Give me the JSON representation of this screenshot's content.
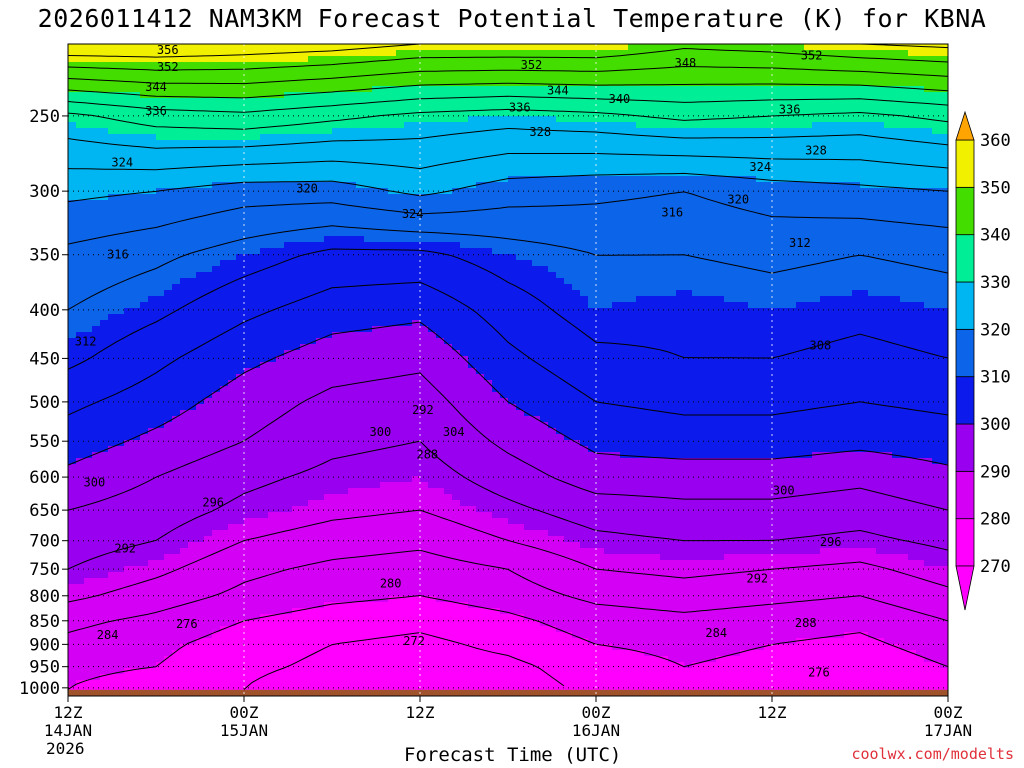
{
  "title": "2026011412 NAM3KM Forecast Potential Temperature (K) for KBNA",
  "credit": "coolwx.com/modelts",
  "chart_data": {
    "type": "heatmap",
    "title": "2026011412 NAM3KM Forecast Potential Temperature (K) for KBNA",
    "xlabel": "Forecast Time (UTC)",
    "ylabel": "",
    "x_ticks": [
      {
        "hours": 0,
        "line1": "12Z",
        "line2": "14JAN"
      },
      {
        "hours": 12,
        "line1": "00Z",
        "line2": "15JAN"
      },
      {
        "hours": 24,
        "line1": "12Z",
        "line2": ""
      },
      {
        "hours": 36,
        "line1": "00Z",
        "line2": "16JAN"
      },
      {
        "hours": 48,
        "line1": "12Z",
        "line2": ""
      },
      {
        "hours": 60,
        "line1": "00Z",
        "line2": "17JAN"
      }
    ],
    "year_label": "2026",
    "xlim": [
      0,
      60
    ],
    "y_ticks": [
      250,
      300,
      350,
      400,
      450,
      500,
      550,
      600,
      650,
      700,
      750,
      800,
      850,
      900,
      950,
      1000
    ],
    "ylim": [
      1020,
      210
    ],
    "y_scale": "log-pressure",
    "colorbar": {
      "levels": [
        270,
        280,
        290,
        300,
        310,
        320,
        330,
        340,
        350,
        360
      ],
      "colors": [
        "#ff00ff",
        "#d400f5",
        "#9a00f0",
        "#0c1aec",
        "#0c64e8",
        "#00b6f2",
        "#00ee96",
        "#44dd00",
        "#f0f000",
        "#ffa400"
      ],
      "extend": "both"
    },
    "time_hours": [
      0,
      6,
      12,
      18,
      24,
      30,
      36,
      42,
      48,
      54,
      60
    ],
    "theta_levels_hpa": [
      1000,
      950,
      900,
      850,
      800,
      750,
      700,
      650,
      600,
      550,
      500,
      450,
      400,
      350,
      300,
      250,
      210
    ],
    "theta_K": [
      [
        280,
        278,
        276,
        273,
        272,
        274,
        277,
        279,
        278,
        276,
        279
      ],
      [
        281,
        280,
        277,
        275,
        274,
        275,
        278,
        280,
        279,
        277,
        280
      ],
      [
        283,
        281,
        278,
        276,
        275,
        277,
        280,
        281,
        280,
        279,
        282
      ],
      [
        285,
        283,
        280,
        278,
        277,
        279,
        282,
        283,
        282,
        281,
        284
      ],
      [
        289,
        286,
        283,
        281,
        280,
        282,
        285,
        286,
        285,
        284,
        287
      ],
      [
        292,
        289,
        285,
        283,
        282,
        284,
        288,
        289,
        288,
        287,
        290
      ],
      [
        294,
        292,
        288,
        286,
        285,
        288,
        291,
        292,
        292,
        291,
        293
      ],
      [
        296,
        294,
        291,
        289,
        288,
        291,
        294,
        295,
        295,
        294,
        296
      ],
      [
        299,
        296,
        293,
        291,
        290,
        294,
        298,
        298,
        298,
        297,
        299
      ],
      [
        302,
        299,
        296,
        293,
        292,
        297,
        301,
        302,
        302,
        301,
        302
      ],
      [
        305,
        302,
        298,
        295,
        294,
        300,
        304,
        305,
        305,
        304,
        305
      ],
      [
        309,
        305,
        301,
        298,
        297,
        303,
        307,
        308,
        308,
        307,
        308
      ],
      [
        312,
        309,
        305,
        302,
        301,
        306,
        310,
        309,
        310,
        309,
        310
      ],
      [
        315,
        313,
        310,
        307,
        307,
        310,
        312,
        312,
        313,
        312,
        313
      ],
      [
        321,
        320,
        318,
        318,
        321,
        318,
        317,
        316,
        318,
        319,
        320
      ],
      [
        331,
        334,
        335,
        333,
        331,
        330,
        331,
        333,
        332,
        331,
        333
      ],
      [
        356,
        356,
        355,
        354,
        352,
        352,
        352,
        349,
        350,
        352,
        353
      ]
    ],
    "contour_labels": [
      {
        "text": "356",
        "t": 6.8,
        "p": 213
      },
      {
        "text": "352",
        "t": 6.8,
        "p": 222
      },
      {
        "text": "344",
        "t": 6.0,
        "p": 233
      },
      {
        "text": "336",
        "t": 6.0,
        "p": 247
      },
      {
        "text": "324",
        "t": 3.7,
        "p": 280
      },
      {
        "text": "320",
        "t": 16.3,
        "p": 298
      },
      {
        "text": "316",
        "t": 3.4,
        "p": 350
      },
      {
        "text": "312",
        "t": 1.2,
        "p": 432
      },
      {
        "text": "300",
        "t": 1.8,
        "p": 608
      },
      {
        "text": "296",
        "t": 9.9,
        "p": 638
      },
      {
        "text": "292",
        "t": 3.9,
        "p": 713
      },
      {
        "text": "284",
        "t": 2.7,
        "p": 880
      },
      {
        "text": "276",
        "t": 8.1,
        "p": 857
      },
      {
        "text": "272",
        "t": 23.6,
        "p": 893
      },
      {
        "text": "288",
        "t": 24.5,
        "p": 568
      },
      {
        "text": "292",
        "t": 24.2,
        "p": 510
      },
      {
        "text": "280",
        "t": 22.0,
        "p": 777
      },
      {
        "text": "300",
        "t": 21.3,
        "p": 538
      },
      {
        "text": "304",
        "t": 26.3,
        "p": 538
      },
      {
        "text": "352",
        "t": 31.6,
        "p": 221
      },
      {
        "text": "344",
        "t": 33.4,
        "p": 235
      },
      {
        "text": "340",
        "t": 37.6,
        "p": 240
      },
      {
        "text": "336",
        "t": 30.8,
        "p": 245
      },
      {
        "text": "328",
        "t": 32.2,
        "p": 260
      },
      {
        "text": "324",
        "t": 23.5,
        "p": 317
      },
      {
        "text": "316",
        "t": 41.2,
        "p": 316
      },
      {
        "text": "320",
        "t": 45.7,
        "p": 306
      },
      {
        "text": "348",
        "t": 42.1,
        "p": 220
      },
      {
        "text": "352",
        "t": 50.7,
        "p": 216
      },
      {
        "text": "336",
        "t": 49.2,
        "p": 246
      },
      {
        "text": "324",
        "t": 47.2,
        "p": 283
      },
      {
        "text": "328",
        "t": 51.0,
        "p": 272
      },
      {
        "text": "312",
        "t": 49.9,
        "p": 340
      },
      {
        "text": "308",
        "t": 51.3,
        "p": 436
      },
      {
        "text": "300",
        "t": 48.8,
        "p": 620
      },
      {
        "text": "296",
        "t": 52.0,
        "p": 702
      },
      {
        "text": "292",
        "t": 47.0,
        "p": 767
      },
      {
        "text": "288",
        "t": 50.3,
        "p": 855
      },
      {
        "text": "284",
        "t": 44.2,
        "p": 876
      },
      {
        "text": "276",
        "t": 51.2,
        "p": 964
      }
    ],
    "terrain_color": "#a0522d"
  }
}
